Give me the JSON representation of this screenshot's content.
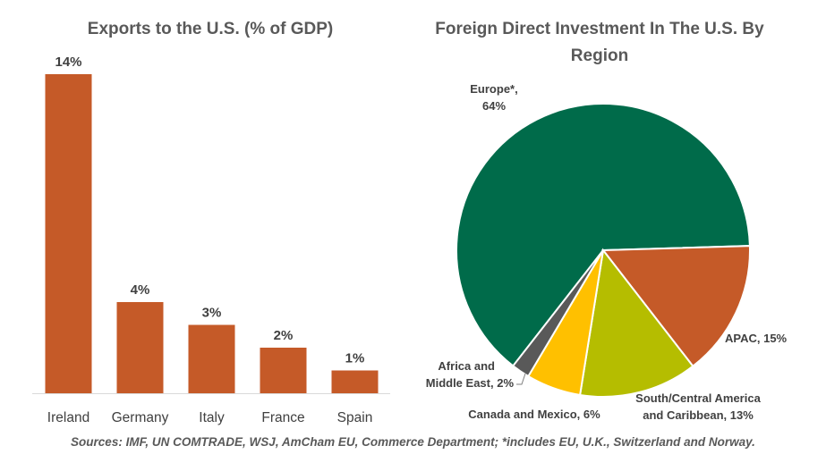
{
  "charts": {
    "exports": {
      "title": "Exports to the U.S. (% of GDP)"
    },
    "fdi": {
      "title": "Foreign Direct Investment In The U.S. By Region"
    }
  },
  "source_note": "Sources: IMF, UN COMTRADE, WSJ, AmCham EU, Commerce Department; *includes EU, U.K., Switzerland and Norway.",
  "chart_data": [
    {
      "type": "bar",
      "title": "Exports to the U.S. (% of GDP)",
      "categories": [
        "Ireland",
        "Germany",
        "Italy",
        "France",
        "Spain"
      ],
      "values": [
        14,
        4,
        3,
        2,
        1
      ],
      "data_labels": [
        "14%",
        "4%",
        "3%",
        "2%",
        "1%"
      ],
      "color": "#c55a28",
      "ylim": [
        0,
        14
      ],
      "grid": false
    },
    {
      "type": "pie",
      "title": "Foreign Direct Investment In The U.S. By Region",
      "slices": [
        {
          "label": "Europe*,",
          "label2": "64%",
          "value": 64,
          "color": "#006b4a"
        },
        {
          "label": "APAC, 15%",
          "label2": "",
          "value": 15,
          "color": "#c55a28"
        },
        {
          "label": "South/Central America",
          "label2": "and Caribbean, 13%",
          "value": 13,
          "color": "#b5bd00"
        },
        {
          "label": "Canada and Mexico, 6%",
          "label2": "",
          "value": 6,
          "color": "#ffc000"
        },
        {
          "label": "Africa and",
          "label2": "Middle East, 2%",
          "value": 2,
          "color": "#595959"
        }
      ]
    }
  ]
}
